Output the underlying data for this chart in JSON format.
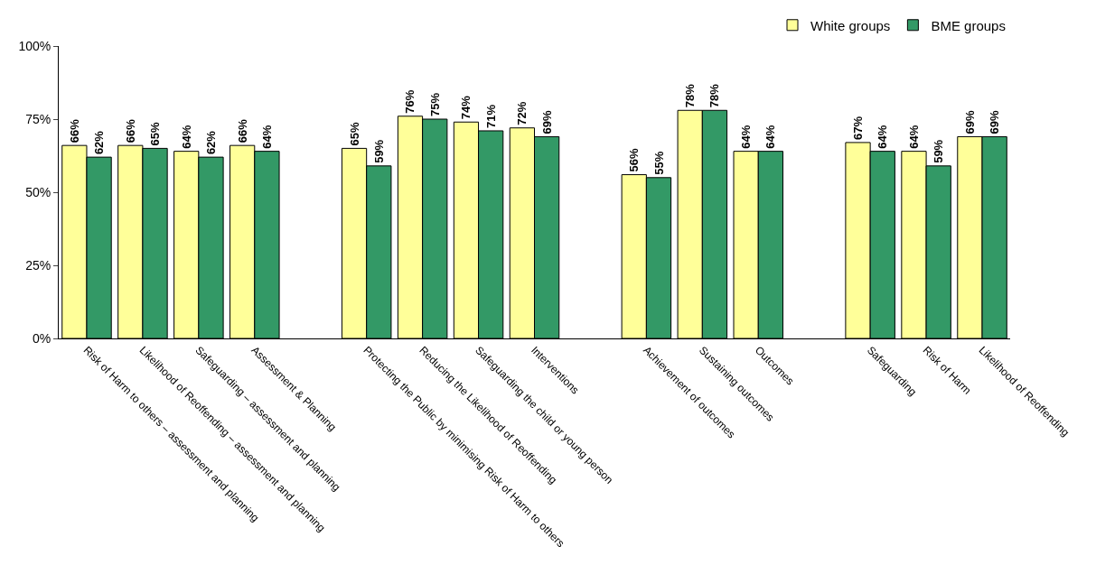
{
  "chart_data": {
    "type": "bar",
    "categories": [
      "Risk of Harm to others – assessment and planning",
      "Likelihood of Reoffending – assessment and planning",
      "Safeguarding – assessment and planning",
      "Assessment & Planning",
      null,
      "Protecting the Public by minimising Risk of Harm to others",
      "Reducing the Likelihood of Reoffending",
      "Safeguarding the child or young person",
      "Interventions",
      null,
      "Achievement of outcomes",
      "Sustaining outcomes",
      "Outcomes",
      null,
      "Safeguarding",
      "Risk of Harm",
      "Likelihood of Reoffending"
    ],
    "series": [
      {
        "name": "White groups",
        "color": "#ffff99",
        "values": [
          66,
          66,
          64,
          66,
          null,
          65,
          76,
          74,
          72,
          null,
          56,
          78,
          64,
          null,
          67,
          64,
          69
        ],
        "value_labels": [
          "66%",
          "66%",
          "64%",
          "66%",
          null,
          "65%",
          "76%",
          "74%",
          "72%",
          null,
          "56%",
          "78%",
          "64%",
          null,
          "67%",
          "64%",
          "69%"
        ]
      },
      {
        "name": "BME groups",
        "color": "#339966",
        "values": [
          62,
          65,
          62,
          64,
          null,
          59,
          75,
          71,
          69,
          null,
          55,
          78,
          64,
          null,
          64,
          59,
          69
        ],
        "value_labels": [
          "62%",
          "65%",
          "62%",
          "64%",
          null,
          "59%",
          "75%",
          "71%",
          "69%",
          null,
          "55%",
          "78%",
          "64%",
          null,
          "64%",
          "59%",
          "69%"
        ]
      }
    ],
    "ylim": [
      0,
      100
    ],
    "yticks": [
      {
        "value": 0,
        "label": "0%"
      },
      {
        "value": 25,
        "label": "25%"
      },
      {
        "value": 50,
        "label": "50%"
      },
      {
        "value": 75,
        "label": "75%"
      },
      {
        "value": 100,
        "label": "100%"
      }
    ],
    "legend": "top right"
  }
}
